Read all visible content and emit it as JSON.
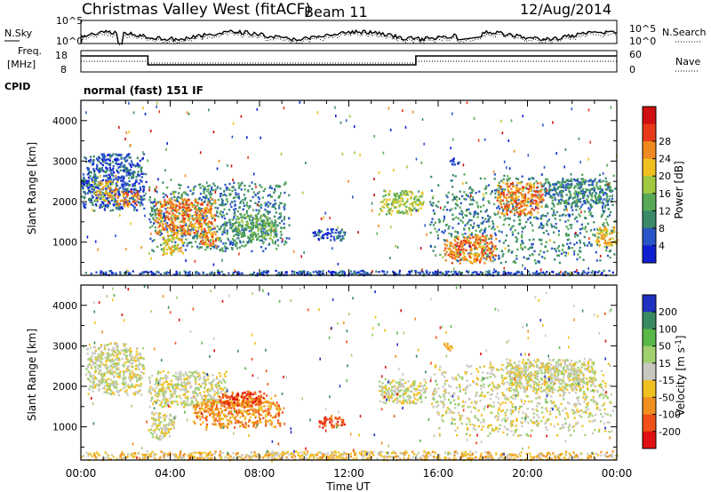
{
  "header": {
    "station": "Christmas Valley West (fitACF)",
    "beam": "Beam 11",
    "date": "12/Aug/2014"
  },
  "strips": {
    "nsky_label": "N.Sky",
    "nsearch_label": "N.Search",
    "noise_ticks": [
      "10^5",
      "10^0"
    ],
    "freq_label_1": "Freq.",
    "freq_label_2": "[MHz]",
    "freq_ticks": [
      "18",
      "8"
    ],
    "nave_label": "Nave",
    "nave_ticks": [
      "60",
      "0"
    ],
    "cpid_label": "CPID",
    "cpid_value": "normal (fast) 151 IF"
  },
  "chart_data": [
    {
      "type": "heatmap",
      "panel": "power",
      "ylabel": "Slant Range [km]",
      "xlabel": "",
      "x_ticks": [
        "00:00",
        "04:00",
        "08:00",
        "12:00",
        "16:00",
        "20:00",
        "00:00"
      ],
      "xlim_hours": [
        0,
        24
      ],
      "ylim": [
        180,
        4500
      ],
      "y_ticks": [
        1000,
        2000,
        3000,
        4000
      ],
      "colorbar": {
        "label": "Power [dB]",
        "ticks": [
          4,
          8,
          12,
          16,
          20,
          24,
          28
        ],
        "colors": [
          "#1020d0",
          "#2a55c8",
          "#3a8a6a",
          "#58a858",
          "#a0c840",
          "#f0c020",
          "#f08a20",
          "#e83a18",
          "#d01010"
        ]
      },
      "regions": [
        {
          "t0": 0.0,
          "t1": 2.9,
          "r0": 1800,
          "r1": 3200,
          "level": 1
        },
        {
          "t0": 0.5,
          "t1": 1.6,
          "r0": 2050,
          "r1": 2550,
          "level": 5
        },
        {
          "t0": 1.5,
          "t1": 2.6,
          "r0": 1900,
          "r1": 2300,
          "level": 6
        },
        {
          "t0": 3.0,
          "t1": 9.3,
          "r0": 800,
          "r1": 2500,
          "level": 2
        },
        {
          "t0": 3.3,
          "t1": 6.0,
          "r0": 1200,
          "r1": 2100,
          "level": 6
        },
        {
          "t0": 3.6,
          "t1": 4.6,
          "r0": 700,
          "r1": 1200,
          "level": 5
        },
        {
          "t0": 5.2,
          "t1": 6.1,
          "r0": 900,
          "r1": 1300,
          "level": 6
        },
        {
          "t0": 6.7,
          "t1": 8.8,
          "r0": 1100,
          "r1": 1700,
          "level": 3
        },
        {
          "t0": 10.3,
          "t1": 11.8,
          "r0": 1050,
          "r1": 1350,
          "level": 1
        },
        {
          "t0": 13.3,
          "t1": 15.3,
          "r0": 1700,
          "r1": 2300,
          "level": 4
        },
        {
          "t0": 15.6,
          "t1": 23.9,
          "r0": 500,
          "r1": 2700,
          "level": 2
        },
        {
          "t0": 16.2,
          "t1": 18.6,
          "r0": 500,
          "r1": 1200,
          "level": 6
        },
        {
          "t0": 18.6,
          "t1": 20.7,
          "r0": 1700,
          "r1": 2500,
          "level": 6
        },
        {
          "t0": 20.7,
          "t1": 23.8,
          "r0": 1900,
          "r1": 2600,
          "level": 2
        },
        {
          "t0": 23.0,
          "t1": 24.0,
          "r0": 900,
          "r1": 1400,
          "level": 5
        },
        {
          "t0": 16.5,
          "t1": 16.9,
          "r0": 2900,
          "r1": 3100,
          "level": 1
        },
        {
          "t0": 0.0,
          "t1": 24.0,
          "r0": 200,
          "r1": 320,
          "level": 1
        }
      ]
    },
    {
      "type": "heatmap",
      "panel": "velocity",
      "ylabel": "Slant Range [km]",
      "xlabel": "Time UT",
      "x_ticks": [
        "00:00",
        "04:00",
        "08:00",
        "12:00",
        "16:00",
        "20:00",
        "00:00"
      ],
      "xlim_hours": [
        0,
        24
      ],
      "ylim": [
        180,
        4500
      ],
      "y_ticks": [
        1000,
        2000,
        3000,
        4000
      ],
      "colorbar": {
        "label": "Velocity [m s-1]",
        "ticks": [
          200,
          100,
          50,
          15,
          -15,
          -50,
          -100,
          -200
        ],
        "colors": [
          "#2030c0",
          "#3a8a60",
          "#58b848",
          "#a0d070",
          "#c8c8c0",
          "#f0c020",
          "#f09020",
          "#f05018",
          "#e01010"
        ]
      },
      "regions": [
        {
          "t0": 0.2,
          "t1": 2.8,
          "r0": 1800,
          "r1": 3100,
          "level": 4
        },
        {
          "t0": 3.0,
          "t1": 6.5,
          "r0": 1500,
          "r1": 2400,
          "level": 4
        },
        {
          "t0": 3.0,
          "t1": 4.2,
          "r0": 700,
          "r1": 1400,
          "level": 4
        },
        {
          "t0": 5.0,
          "t1": 9.0,
          "r0": 1000,
          "r1": 1800,
          "level": 6
        },
        {
          "t0": 6.2,
          "t1": 8.2,
          "r0": 1500,
          "r1": 1900,
          "level": 7
        },
        {
          "t0": 10.6,
          "t1": 11.8,
          "r0": 1000,
          "r1": 1300,
          "level": 7
        },
        {
          "t0": 13.3,
          "t1": 15.5,
          "r0": 1600,
          "r1": 2200,
          "level": 4
        },
        {
          "t0": 15.6,
          "t1": 23.8,
          "r0": 800,
          "r1": 2600,
          "level": 4
        },
        {
          "t0": 19.0,
          "t1": 23.0,
          "r0": 1900,
          "r1": 2700,
          "level": 4
        },
        {
          "t0": 0.0,
          "t1": 24.0,
          "r0": 200,
          "r1": 420,
          "level": 5
        },
        {
          "t0": 16.2,
          "t1": 16.6,
          "r0": 2900,
          "r1": 3100,
          "level": 6
        }
      ]
    }
  ]
}
